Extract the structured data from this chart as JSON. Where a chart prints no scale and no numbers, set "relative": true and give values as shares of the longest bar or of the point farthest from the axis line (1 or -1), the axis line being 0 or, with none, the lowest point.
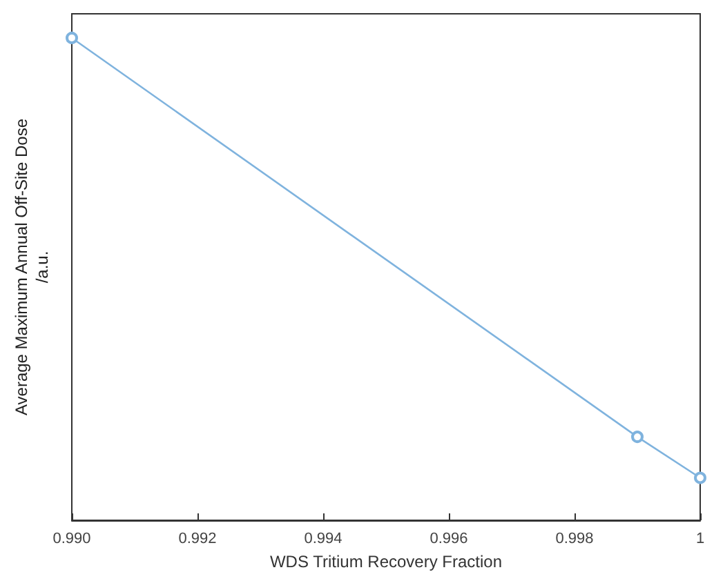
{
  "chart_data": {
    "type": "line",
    "xlabel": "WDS Tritium Recovery Fraction",
    "ylabel": "Average Maximum Annual Off-Site Dose\n/a.u.",
    "x": [
      0.99,
      0.999,
      1.0
    ],
    "series": [
      {
        "color": "#7fb3de",
        "values": [
          1,
          0.173,
          0.088
        ]
      }
    ],
    "relative": true,
    "marker": "circle",
    "xlim": [
      0.99,
      1.0
    ],
    "xticks": [
      {
        "value": 0.99,
        "label": "0.990"
      },
      {
        "value": 0.992,
        "label": "0.992"
      },
      {
        "value": 0.994,
        "label": "0.994"
      },
      {
        "value": 0.996,
        "label": "0.996"
      },
      {
        "value": 0.998,
        "label": "0.998"
      },
      1
    ]
  }
}
